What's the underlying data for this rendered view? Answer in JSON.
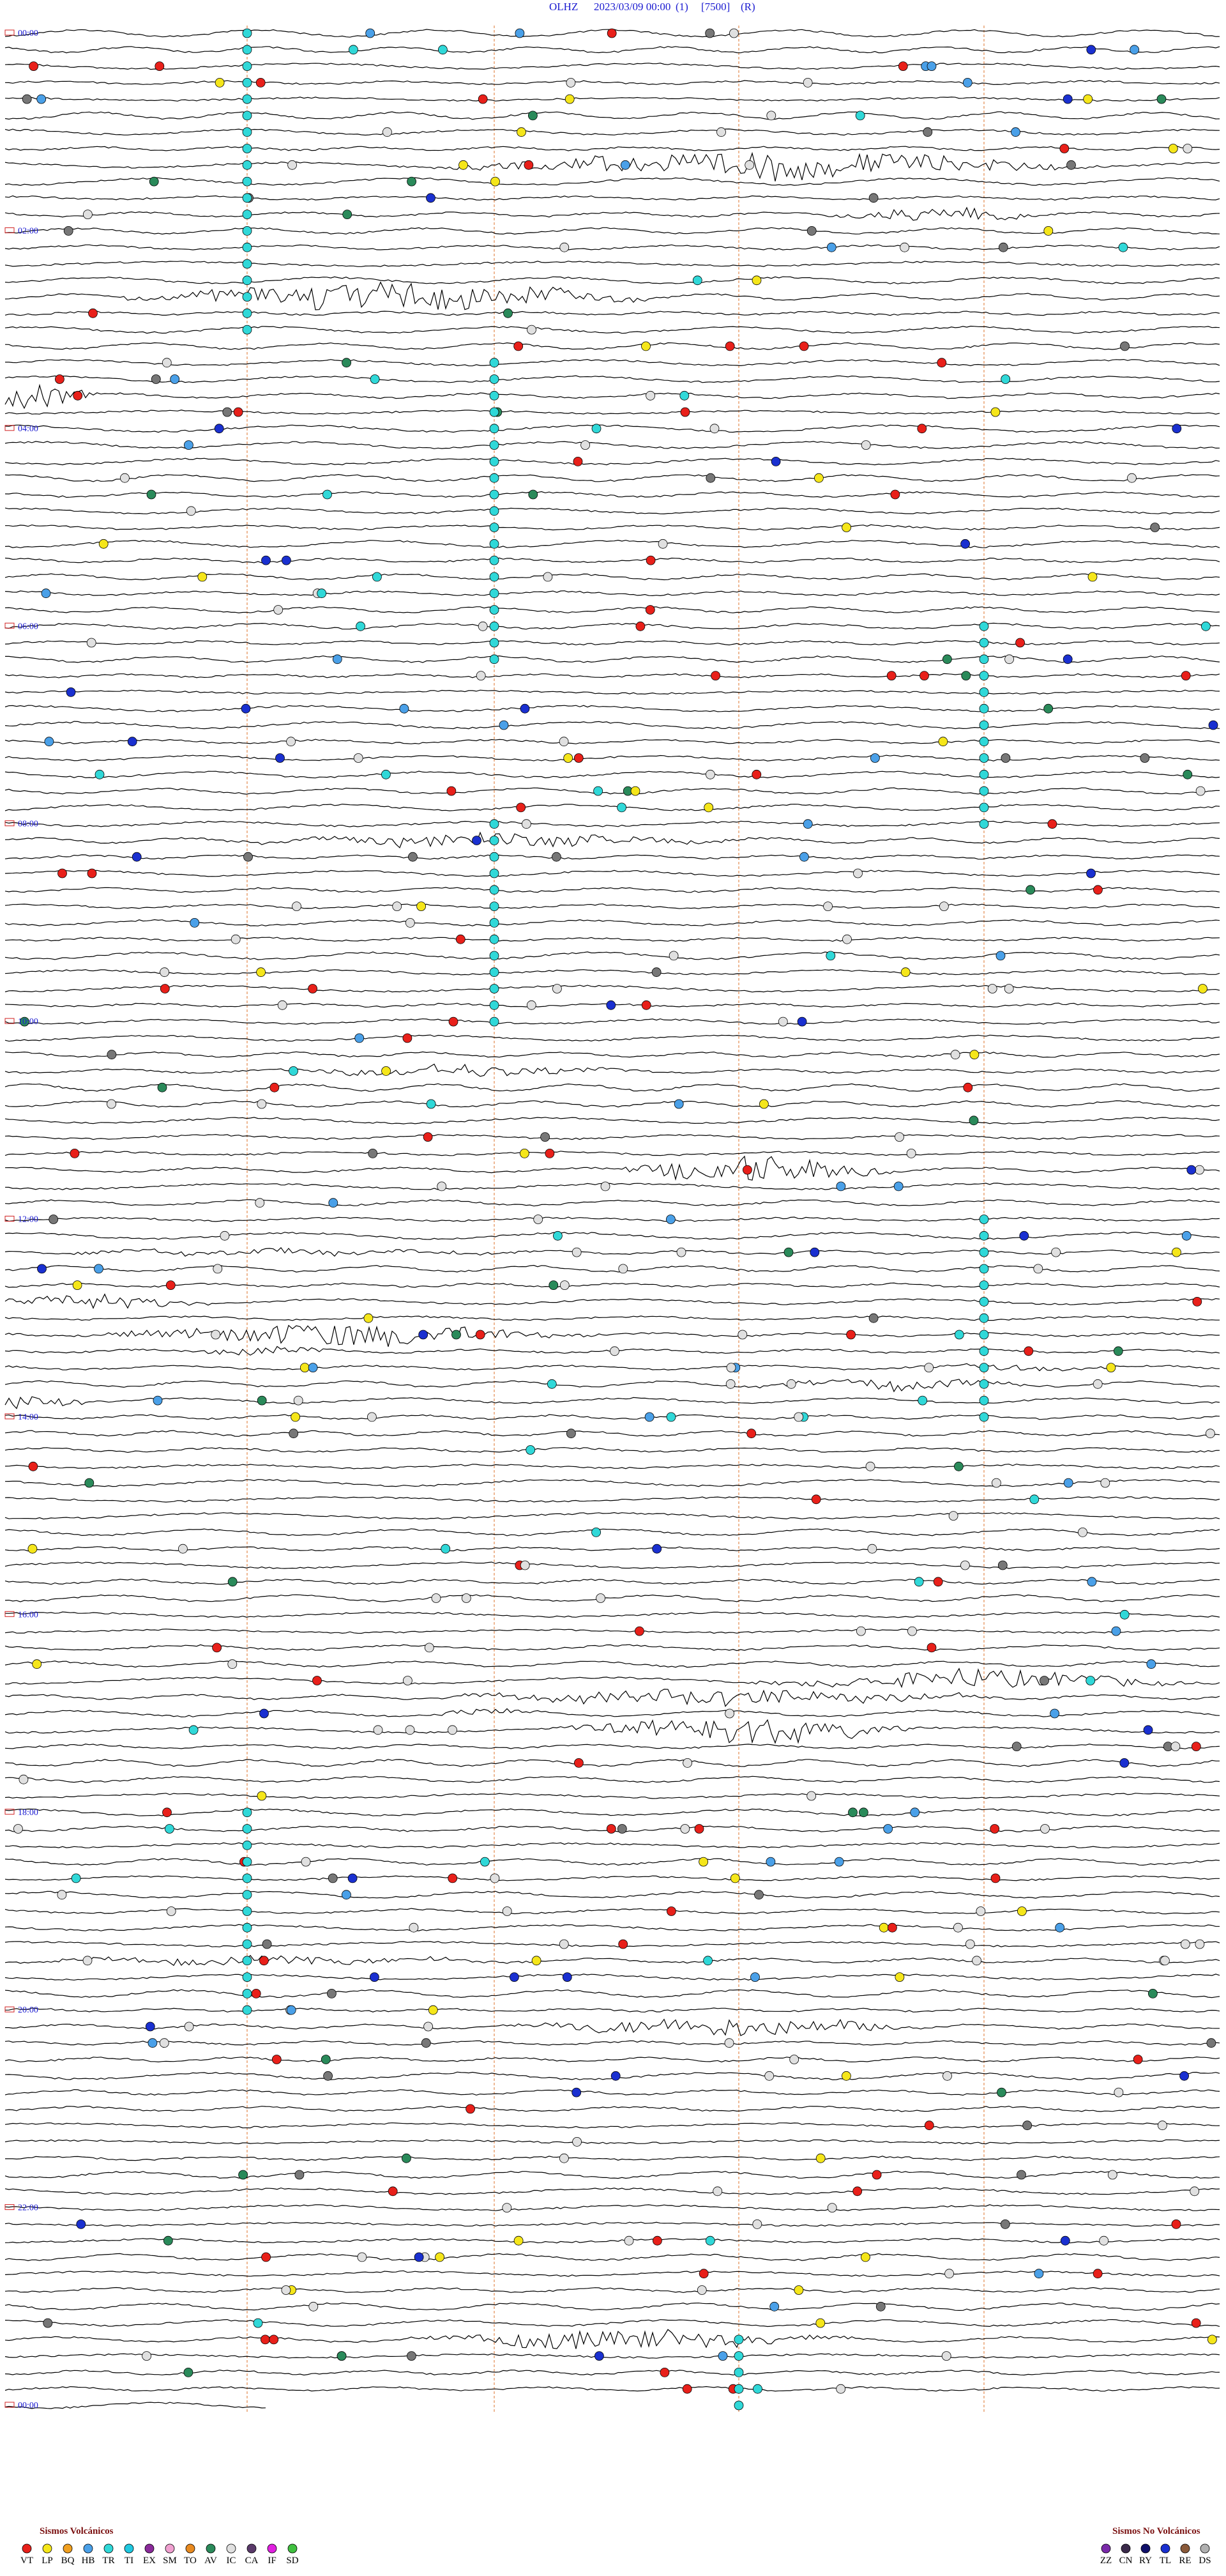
{
  "header": {
    "station": "OLHZ",
    "date": "2023/03/09 00:00",
    "channel": "(1)",
    "scale": "[7500]",
    "mode": "(R)"
  },
  "time_labels": [
    "00:00",
    "02:00",
    "04:00",
    "06:00",
    "08:00",
    "10:00",
    "12:00",
    "14:00",
    "16:00",
    "18:00",
    "20:00",
    "22:00",
    "00:00"
  ],
  "legend": {
    "volcanic": {
      "title": "Sismos Volcánicos",
      "items": [
        {
          "code": "VT",
          "color": "#e8201a"
        },
        {
          "code": "LP",
          "color": "#f5e61a"
        },
        {
          "code": "BQ",
          "color": "#f0a020"
        },
        {
          "code": "HB",
          "color": "#4aa0e8"
        },
        {
          "code": "TR",
          "color": "#30d8d8"
        },
        {
          "code": "TI",
          "color": "#20c8e0"
        },
        {
          "code": "EX",
          "color": "#8a2a9a"
        },
        {
          "code": "SM",
          "color": "#f0a0d0"
        },
        {
          "code": "TO",
          "color": "#e88a20"
        },
        {
          "code": "AV",
          "color": "#2a8a5a"
        },
        {
          "code": "IC",
          "color": "#e0e0e0"
        },
        {
          "code": "CA",
          "color": "#5a3a6a"
        },
        {
          "code": "IF",
          "color": "#e020e0"
        },
        {
          "code": "SD",
          "color": "#40c040"
        }
      ]
    },
    "non_volcanic": {
      "title": "Sismos No Volcánicos",
      "items": [
        {
          "code": "ZZ",
          "color": "#7a2aaa"
        },
        {
          "code": "CN",
          "color": "#3a2a4a"
        },
        {
          "code": "RY",
          "color": "#10106a"
        },
        {
          "code": "TL",
          "color": "#1a30d0"
        },
        {
          "code": "RE",
          "color": "#8a5a3a"
        },
        {
          "code": "DS",
          "color": "#b0b0b0"
        }
      ]
    }
  }
}
